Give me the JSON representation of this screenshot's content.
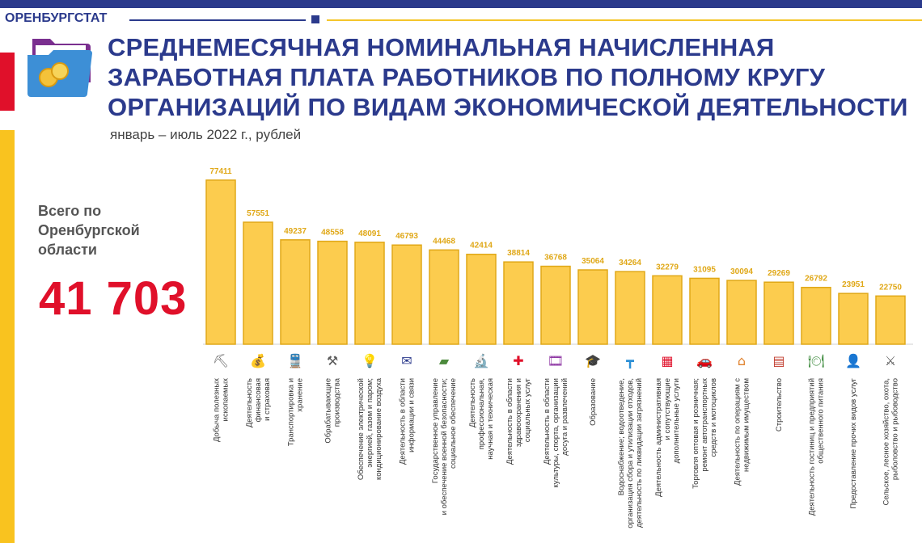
{
  "header": {
    "brand": "ОРЕНБУРГСТАТ",
    "title_lines": [
      "СРЕДНЕМЕСЯЧНАЯ НОМИНАЛЬНАЯ НАЧИСЛЕННАЯ",
      "ЗАРАБОТНАЯ ПЛАТА РАБОТНИКОВ ПО ПОЛНОМУ КРУГУ",
      "ОРГАНИЗАЦИЙ ПО ВИДАМ ЭКОНОМИЧЕСКОЙ ДЕЯТЕЛЬНОСТИ"
    ],
    "subtitle": "январь – июль 2022 г., рублей"
  },
  "total": {
    "label_lines": [
      "Всего по",
      "Оренбургской",
      "области"
    ],
    "value": "41 703"
  },
  "colors": {
    "brand_blue": "#2b3a8c",
    "accent_red": "#e0102a",
    "accent_yellow": "#f9c31f",
    "bar_fill": "#fccc4e",
    "bar_stroke": "#e0a818"
  },
  "chart_data": {
    "type": "bar",
    "title": "",
    "xlabel": "",
    "ylabel": "",
    "ylim": [
      0,
      85000
    ],
    "grid": false,
    "categories": [
      [
        "Добыча полезных",
        "ископаемых"
      ],
      [
        "Деятельность",
        "финансовая",
        "и страховая"
      ],
      [
        "Транспортировка и",
        "хранение"
      ],
      [
        "Обрабатывающие",
        "производства"
      ],
      [
        "Обеспечение электрической",
        "энергией, газом и паром;",
        "кондиционирование воздуха"
      ],
      [
        "Деятельность в области",
        "информации и связи"
      ],
      [
        "Государственное управление",
        "и обеспечение военной безопасности;",
        "социальное обеспечение"
      ],
      [
        "Деятельность",
        "профессиональная,",
        "научная и техническая"
      ],
      [
        "Деятельность в области",
        "здравоохранения и",
        "социальных услуг"
      ],
      [
        "Деятельность в области",
        "культуры, спорта, организации",
        "досуга и развлечений"
      ],
      [
        "Образование"
      ],
      [
        "Водоснабжение; водоотведение,",
        "организация сбора и утилизации отходов,",
        "деятельность по ликвидации загрязнений"
      ],
      [
        "Деятельность административная",
        "и сопутствующие",
        "дополнительные услуги"
      ],
      [
        "Торговля оптовая и розничная;",
        "ремонт автотранспортных",
        "средств и мотоциклов"
      ],
      [
        "Деятельность по операциям с",
        "недвижимым имуществом"
      ],
      [
        "Строительство"
      ],
      [
        "Деятельность гостиниц и предприятий",
        "общественного питания"
      ],
      [
        "Предоставление прочих видов услуг"
      ],
      [
        "Сельское, лесное хозяйство, охота,",
        "рыболовство и рыбоводство"
      ]
    ],
    "values": [
      77411,
      57551,
      49237,
      48558,
      48091,
      46793,
      44468,
      42414,
      38814,
      36768,
      35064,
      34264,
      32279,
      31095,
      30094,
      29269,
      26792,
      23951,
      22750
    ],
    "icons": [
      "shovel-icon",
      "money-icon",
      "train-icon",
      "hammer-gear-icon",
      "lightbulb-icon",
      "mailbox-icon",
      "tank-icon",
      "microscope-icon",
      "health-icon",
      "film-icon",
      "graduation-cap-icon",
      "pipe-icon",
      "building-icon",
      "car-wrench-icon",
      "house-icon",
      "bricks-icon",
      "food-icon",
      "service-person-icon",
      "farm-tools-icon"
    ]
  }
}
